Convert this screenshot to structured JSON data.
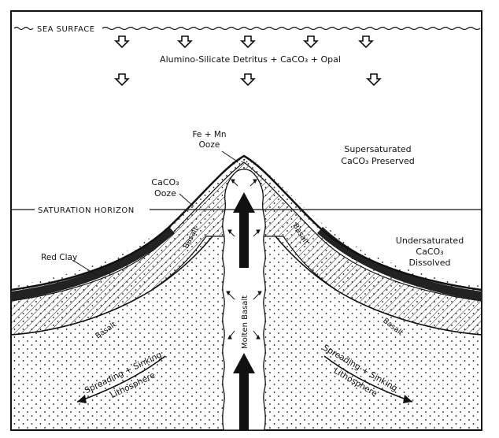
{
  "labels": {
    "sea_surface": "SEA SURFACE",
    "detritus": "Alumino-Silicate Detritus + CaCO₃ + Opal",
    "fe_mn_line1": "Fe + Mn",
    "fe_mn_line2": "Ooze",
    "supersat_line1": "Supersaturated",
    "supersat_line2": "CaCO₃ Preserved",
    "caco3_ooze_line1": "CaCO₃",
    "caco3_ooze_line2": "Ooze",
    "saturation_horizon": "SATURATION HORIZON",
    "red_clay": "Red Clay",
    "basalt_upper_left": "Basalt",
    "basalt_upper_right": "Basalt",
    "basalt_lower_left": "Basalt",
    "basalt_lower_right": "Basalt",
    "molten_basalt": "Molten Basalt",
    "undersat_line1": "Undersaturated",
    "undersat_line2": "CaCO₃",
    "undersat_line3": "Dissolved",
    "spreading_left_line1": "Spreading + Sinking",
    "spreading_left_line2": "Lithosphere",
    "spreading_right_line1": "Spreading + Sinking",
    "spreading_right_line2": "Lithosphere"
  }
}
